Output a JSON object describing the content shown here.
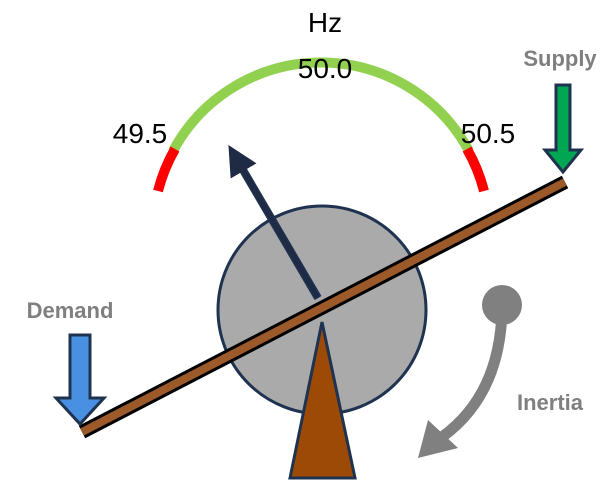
{
  "gauge": {
    "unit": "Hz",
    "center_label": "50.0",
    "left_label": "49.5",
    "right_label": "50.5"
  },
  "arrows": {
    "supply": "Supply",
    "demand": "Demand",
    "inertia": "Inertia"
  }
}
